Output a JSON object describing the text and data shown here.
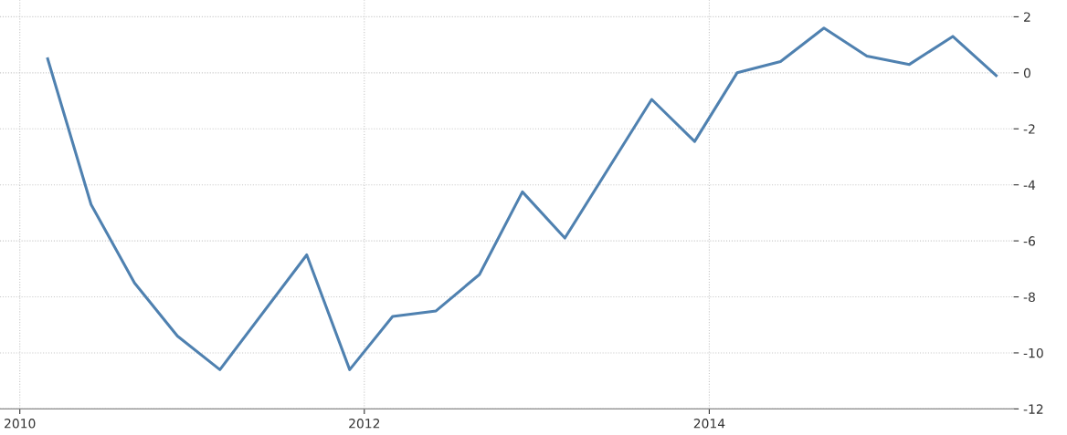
{
  "chart_data": {
    "type": "line",
    "x": [
      "2010-03",
      "2010-06",
      "2010-09",
      "2010-12",
      "2011-03",
      "2011-09",
      "2011-12",
      "2012-03",
      "2012-06",
      "2012-09",
      "2012-12",
      "2013-03",
      "2013-09",
      "2013-12",
      "2014-03",
      "2014-06",
      "2014-09",
      "2014-12",
      "2015-03",
      "2015-06",
      "2015-09"
    ],
    "series": [
      {
        "color": "#4f81b0",
        "values": [
          0.5,
          -4.7,
          -7.5,
          -9.4,
          -10.6,
          -6.5,
          -10.6,
          -8.7,
          -8.5,
          -7.2,
          -4.25,
          -5.9,
          -0.95,
          -2.45,
          0,
          0.4,
          1.6,
          0.6,
          0.3,
          1.3,
          -0.1
        ]
      }
    ],
    "xlim": [
      "2009-11-20",
      "2015-10-08"
    ],
    "xticks": [
      "2010",
      "2012",
      "2014"
    ],
    "ylim": [
      -12,
      2.6
    ],
    "yticks": [
      -12,
      -10,
      -8,
      -6,
      -4,
      -2,
      0,
      2
    ],
    "grid": true,
    "line_style": "solid",
    "marker": "none",
    "legend": false
  }
}
